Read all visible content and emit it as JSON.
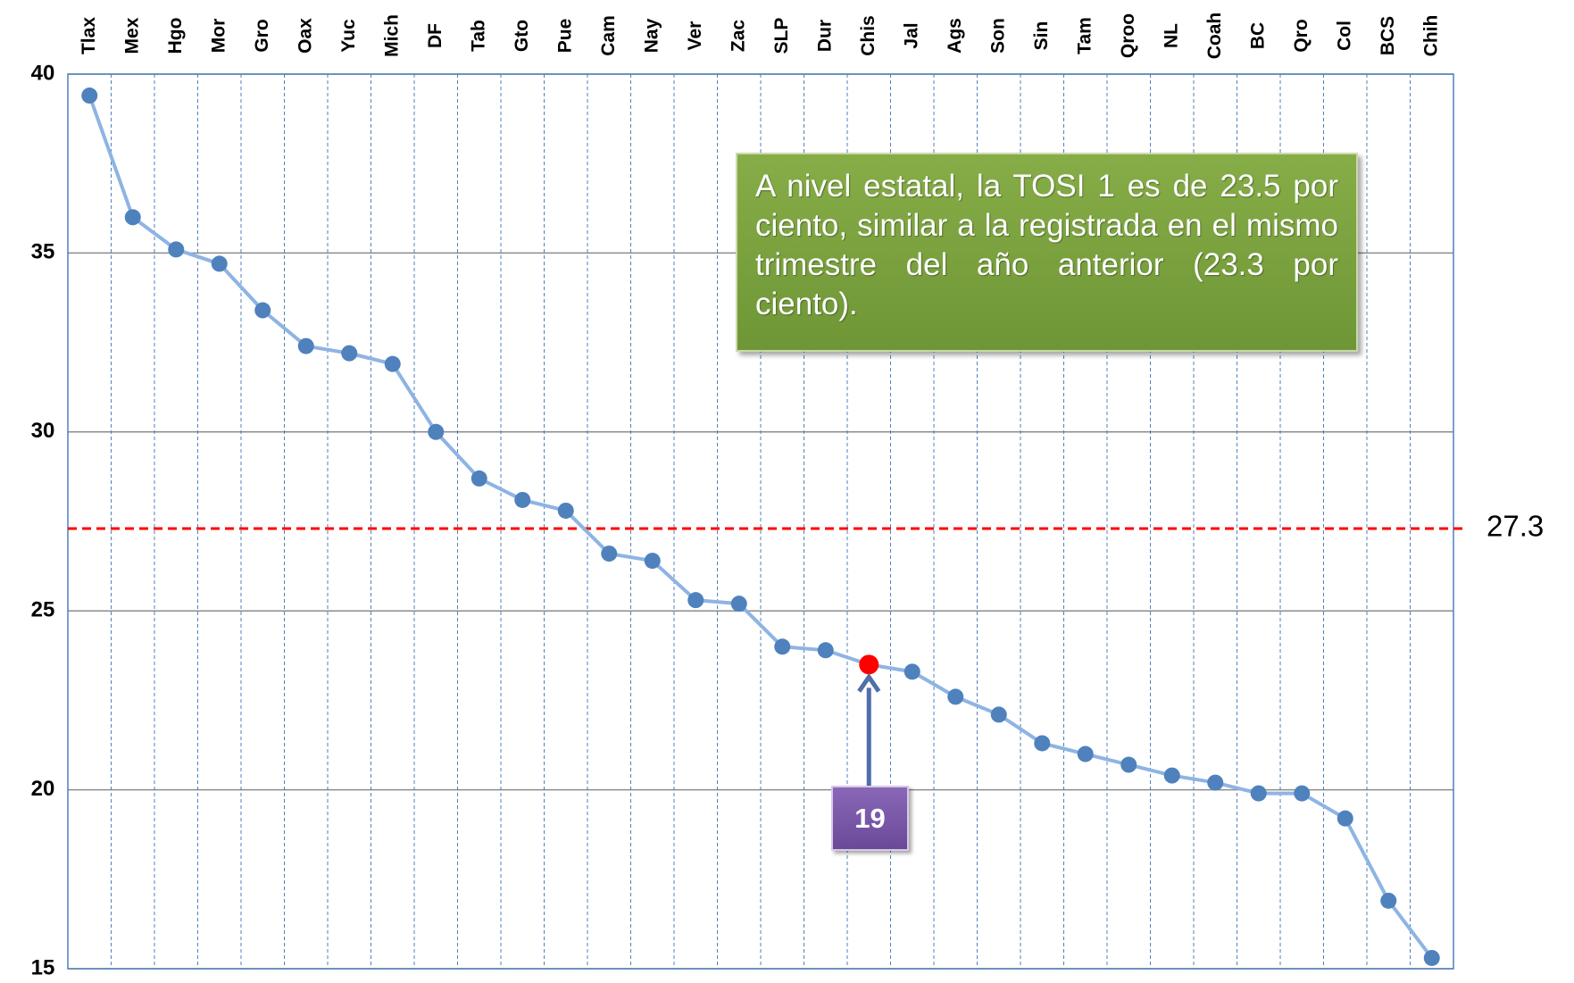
{
  "chart_data": {
    "type": "line",
    "categories": [
      "Tlax",
      "Mex",
      "Hgo",
      "Mor",
      "Gro",
      "Oax",
      "Yuc",
      "Mich",
      "DF",
      "Tab",
      "Gto",
      "Pue",
      "Cam",
      "Nay",
      "Ver",
      "Zac",
      "SLP",
      "Dur",
      "Chis",
      "Jal",
      "Ags",
      "Son",
      "Sin",
      "Tam",
      "Qroo",
      "NL",
      "Coah",
      "BC",
      "Qro",
      "Col",
      "BCS",
      "Chih"
    ],
    "series": [
      {
        "color": "#8eb4e3",
        "values": [
          39.4,
          36.0,
          35.1,
          34.7,
          33.4,
          32.4,
          32.2,
          31.9,
          30.0,
          28.7,
          28.1,
          27.8,
          26.6,
          26.4,
          25.3,
          25.2,
          24.0,
          23.9,
          23.5,
          23.3,
          22.6,
          22.1,
          21.3,
          21.0,
          20.7,
          20.4,
          20.2,
          19.9,
          19.9,
          19.2,
          16.9,
          15.3
        ]
      }
    ],
    "marker_color": "#4f81bd",
    "ylim": [
      15,
      40
    ],
    "yticks": [
      15,
      20,
      25,
      30,
      35,
      40
    ],
    "grid": true,
    "reference_line": {
      "value": 27.3,
      "color": "#ff0000"
    },
    "highlight": {
      "rank": 19,
      "color": "#ff0000"
    },
    "annotation": "A nivel estatal, la TOSI 1 es de 23.5 por ciento, similar a la registrada en el mismo trimestre del año anterior (23.3 por ciento)."
  }
}
